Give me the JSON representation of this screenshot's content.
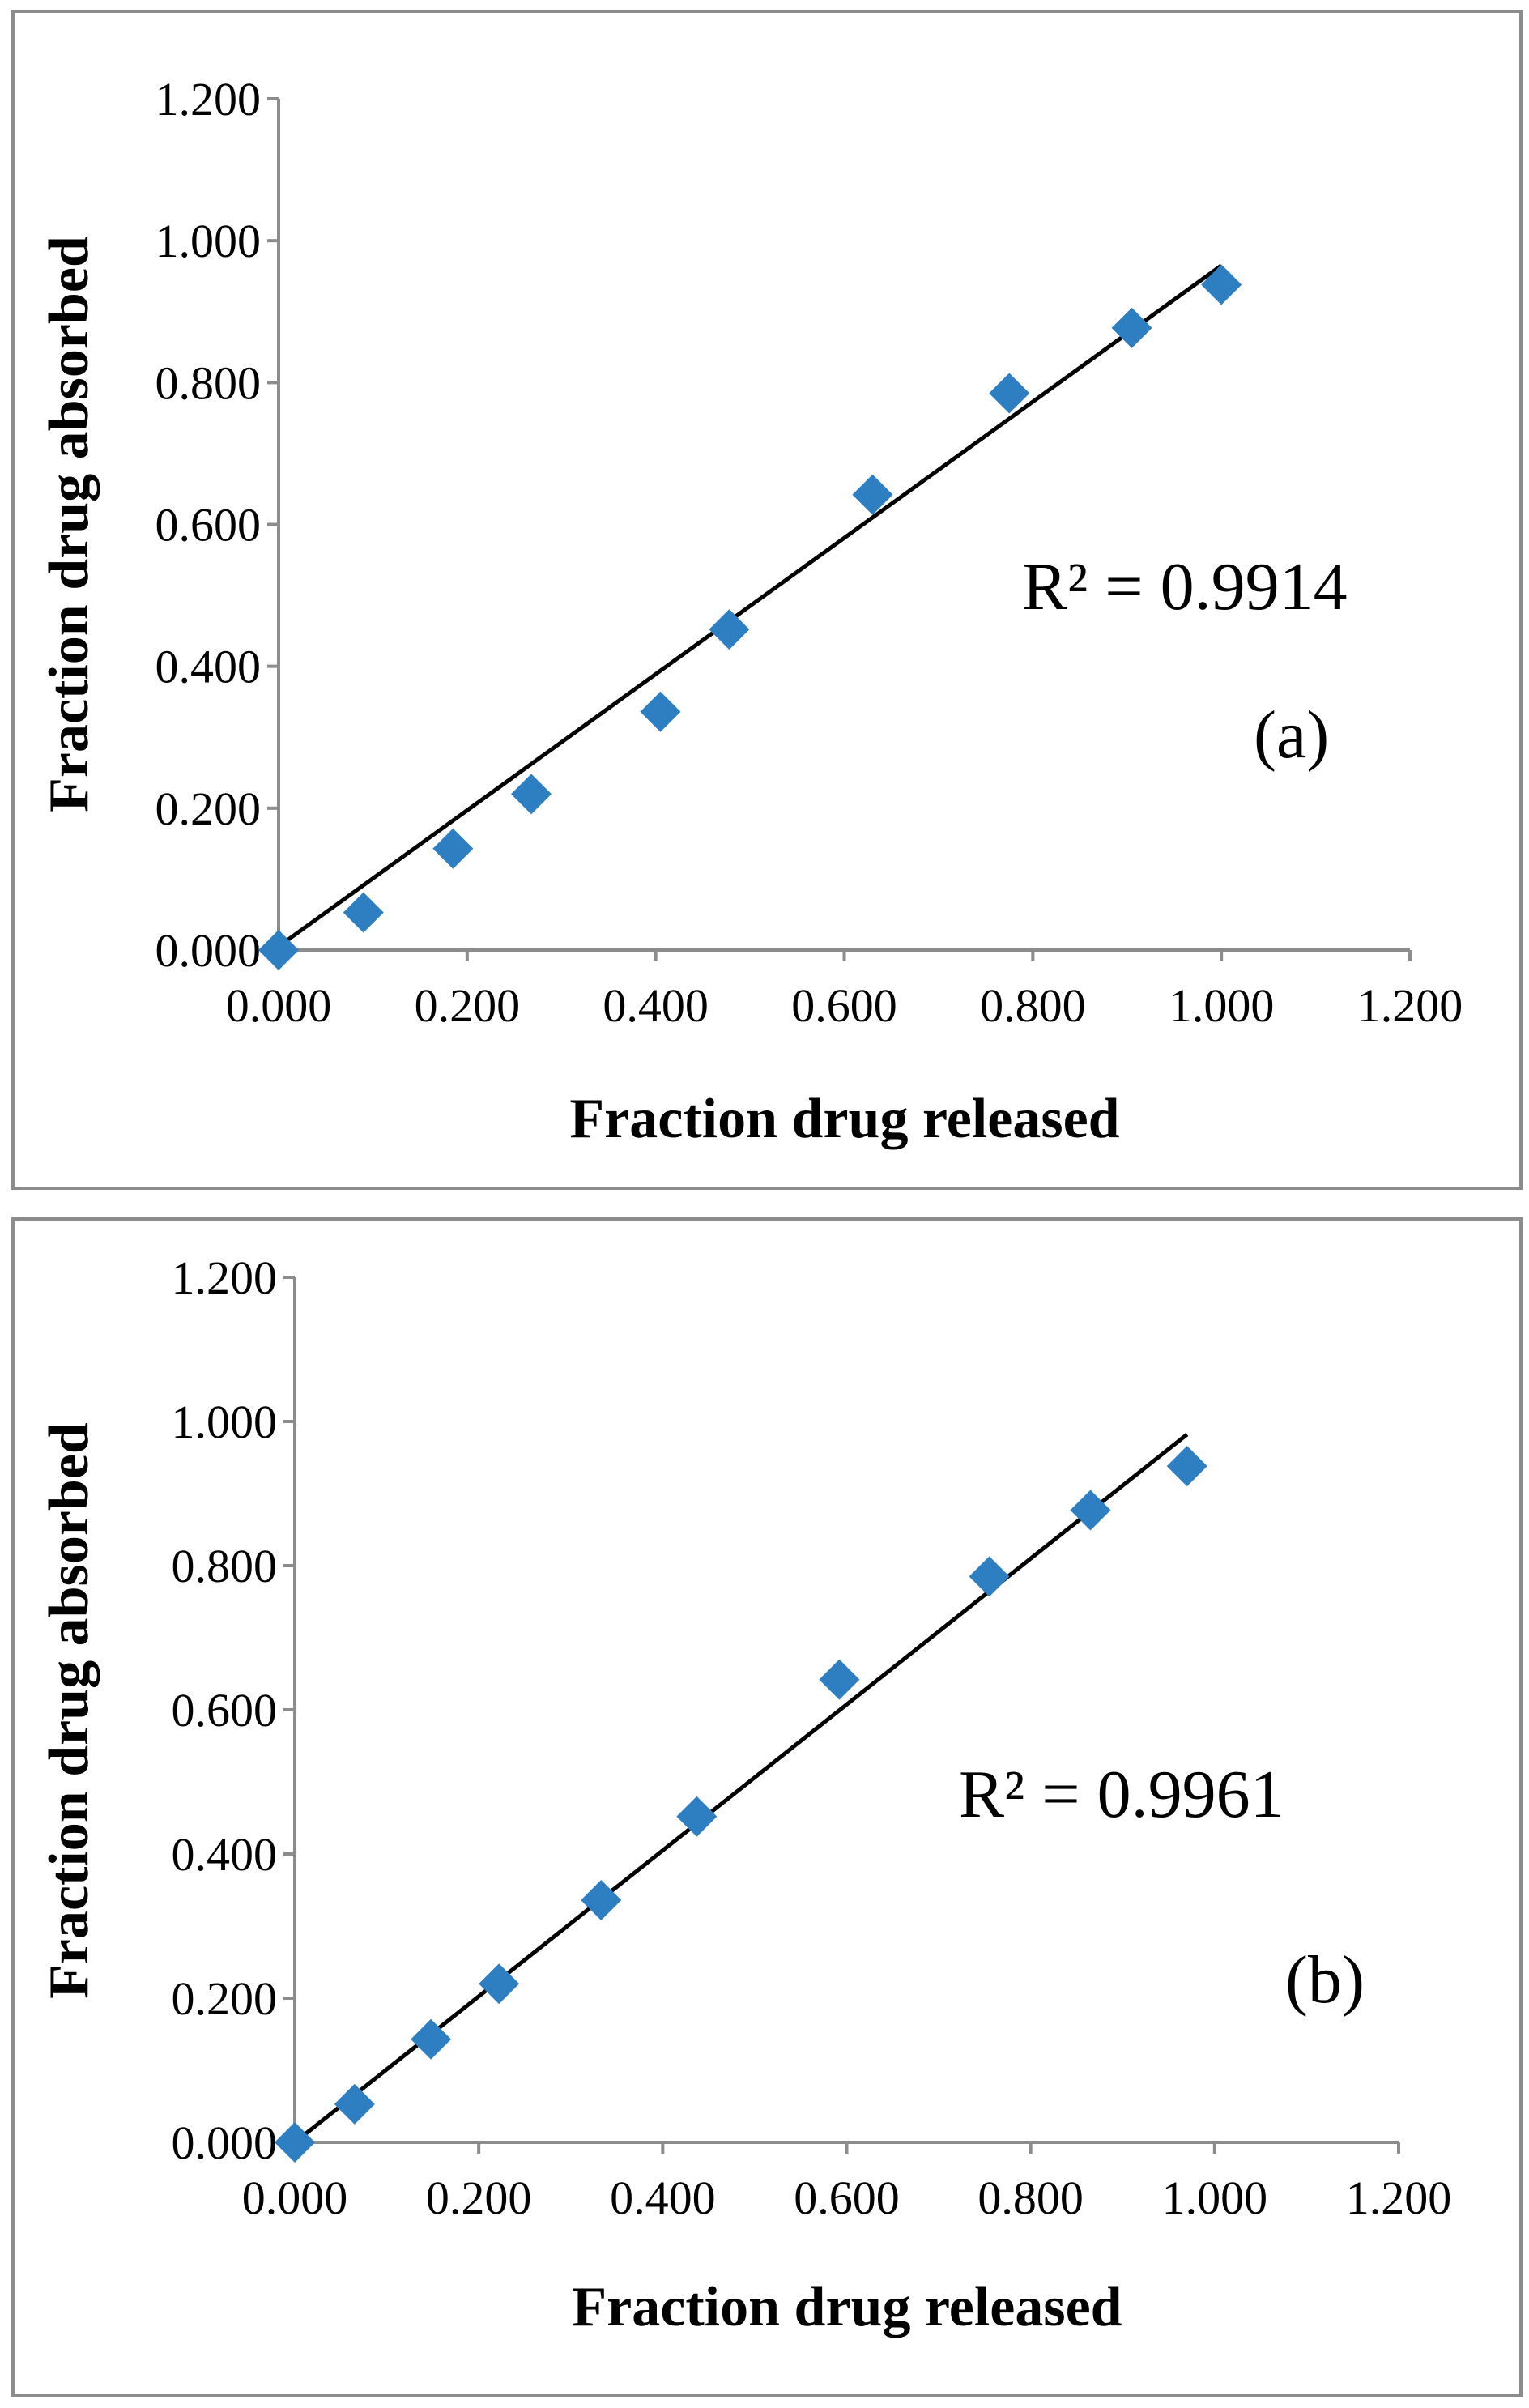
{
  "chart_data": [
    {
      "type": "scatter",
      "panel_label": "(a)",
      "xlabel": "Fraction drug released",
      "ylabel": "Fraction drug absorbed",
      "xlim": [
        0,
        1.2
      ],
      "ylim": [
        0,
        1.2
      ],
      "x_ticks": [
        "0.000",
        "0.200",
        "0.400",
        "0.600",
        "0.800",
        "1.000",
        "1.200"
      ],
      "y_ticks": [
        "0.000",
        "0.200",
        "0.400",
        "0.600",
        "0.800",
        "1.000",
        "1.200"
      ],
      "marker_color": "#2e7fc2",
      "points": [
        {
          "x": 0.0,
          "y": 0.0
        },
        {
          "x": 0.09,
          "y": 0.053
        },
        {
          "x": 0.185,
          "y": 0.143
        },
        {
          "x": 0.268,
          "y": 0.22
        },
        {
          "x": 0.405,
          "y": 0.336
        },
        {
          "x": 0.478,
          "y": 0.452
        },
        {
          "x": 0.63,
          "y": 0.642
        },
        {
          "x": 0.775,
          "y": 0.785
        },
        {
          "x": 0.905,
          "y": 0.877
        },
        {
          "x": 1.0,
          "y": 0.938
        }
      ],
      "trendline": {
        "x": [
          0.0,
          1.0
        ],
        "y": [
          0.005,
          0.965
        ]
      },
      "r2_label": "R² = 0.9914"
    },
    {
      "type": "scatter",
      "panel_label": "(b)",
      "xlabel": "Fraction drug released",
      "ylabel": "Fraction drug absorbed",
      "xlim": [
        0,
        1.2
      ],
      "ylim": [
        0,
        1.2
      ],
      "x_ticks": [
        "0.000",
        "0.200",
        "0.400",
        "0.600",
        "0.800",
        "1.000",
        "1.200"
      ],
      "y_ticks": [
        "0.000",
        "0.200",
        "0.400",
        "0.600",
        "0.800",
        "1.000",
        "1.200"
      ],
      "marker_color": "#2e7fc2",
      "points": [
        {
          "x": 0.0,
          "y": 0.0
        },
        {
          "x": 0.065,
          "y": 0.053
        },
        {
          "x": 0.148,
          "y": 0.143
        },
        {
          "x": 0.222,
          "y": 0.22
        },
        {
          "x": 0.333,
          "y": 0.336
        },
        {
          "x": 0.437,
          "y": 0.452
        },
        {
          "x": 0.592,
          "y": 0.642
        },
        {
          "x": 0.755,
          "y": 0.785
        },
        {
          "x": 0.865,
          "y": 0.877
        },
        {
          "x": 0.97,
          "y": 0.938
        }
      ],
      "trendline": {
        "x": [
          0.0,
          0.97
        ],
        "y": [
          0.0,
          0.982
        ]
      },
      "r2_label": "R² = 0.9961"
    }
  ]
}
